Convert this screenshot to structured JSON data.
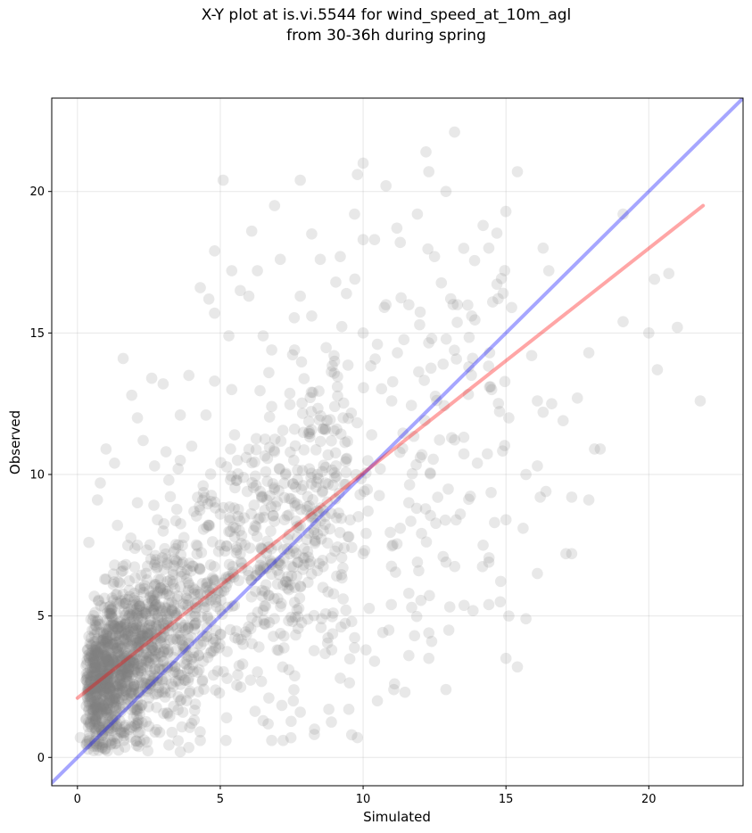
{
  "chart_data": {
    "type": "scatter",
    "title_lines": [
      "X-Y plot at is.vi.5544 for wind_speed_at_10m_agl",
      "from 30-36h during spring"
    ],
    "xlabel": "Simulated",
    "ylabel": "Observed",
    "xlim": [
      -0.9,
      23.3
    ],
    "ylim": [
      -1.0,
      23.3
    ],
    "xticks": [
      0,
      5,
      10,
      15,
      20
    ],
    "yticks": [
      0,
      5,
      10,
      15,
      20
    ],
    "grid": true,
    "point_color": "#808080",
    "point_opacity": 0.18,
    "series": [
      {
        "role": "1:1 line",
        "type": "line",
        "color": "#0000ff",
        "opacity": 0.35,
        "x": [
          -0.9,
          23.3
        ],
        "y": [
          -0.9,
          23.3
        ]
      },
      {
        "role": "linear fit",
        "type": "line",
        "color": "#ff0000",
        "opacity": 0.35,
        "x": [
          0.0,
          21.9
        ],
        "y": [
          2.1,
          19.5
        ]
      }
    ],
    "points": [
      [
        13.2,
        22.1
      ],
      [
        12.2,
        21.4
      ],
      [
        10.0,
        21.0
      ],
      [
        9.8,
        20.6
      ],
      [
        10.8,
        20.2
      ],
      [
        5.1,
        20.4
      ],
      [
        7.8,
        20.4
      ],
      [
        12.3,
        20.7
      ],
      [
        15.4,
        20.7
      ],
      [
        12.9,
        20.0
      ],
      [
        6.9,
        19.5
      ],
      [
        11.9,
        19.2
      ],
      [
        19.1,
        19.2
      ],
      [
        9.7,
        19.2
      ],
      [
        8.2,
        18.5
      ],
      [
        14.2,
        18.8
      ],
      [
        6.1,
        18.6
      ],
      [
        10.4,
        18.3
      ],
      [
        10.0,
        18.3
      ],
      [
        11.3,
        18.2
      ],
      [
        16.3,
        18.0
      ],
      [
        14.4,
        18.0
      ],
      [
        12.5,
        17.7
      ],
      [
        4.8,
        17.9
      ],
      [
        9.2,
        17.7
      ],
      [
        8.5,
        17.6
      ],
      [
        7.1,
        17.6
      ],
      [
        5.4,
        17.2
      ],
      [
        6.3,
        17.2
      ],
      [
        16.5,
        17.2
      ],
      [
        20.7,
        17.1
      ],
      [
        20.2,
        16.9
      ],
      [
        4.3,
        16.6
      ],
      [
        5.7,
        16.5
      ],
      [
        6.0,
        16.3
      ],
      [
        7.8,
        16.3
      ],
      [
        10.8,
        16.0
      ],
      [
        11.6,
        16.0
      ],
      [
        13.3,
        16.0
      ],
      [
        15.2,
        15.9
      ],
      [
        14.9,
        16.4
      ],
      [
        4.6,
        16.2
      ],
      [
        8.2,
        15.6
      ],
      [
        4.8,
        15.7
      ],
      [
        13.8,
        15.6
      ],
      [
        10.0,
        15.0
      ],
      [
        19.1,
        15.4
      ],
      [
        21.0,
        15.2
      ],
      [
        20.0,
        15.0
      ],
      [
        5.3,
        14.9
      ],
      [
        6.5,
        14.9
      ],
      [
        12.4,
        14.8
      ],
      [
        10.5,
        14.6
      ],
      [
        7.6,
        14.4
      ],
      [
        6.8,
        14.4
      ],
      [
        11.2,
        14.3
      ],
      [
        15.9,
        14.2
      ],
      [
        17.9,
        14.3
      ],
      [
        1.6,
        14.1
      ],
      [
        9.0,
        14.0
      ],
      [
        12.8,
        13.9
      ],
      [
        20.3,
        13.7
      ],
      [
        13.7,
        13.8
      ],
      [
        4.8,
        13.3
      ],
      [
        6.7,
        13.6
      ],
      [
        3.9,
        13.5
      ],
      [
        9.1,
        13.1
      ],
      [
        2.6,
        13.4
      ],
      [
        5.4,
        13.0
      ],
      [
        14.5,
        13.0
      ],
      [
        3.0,
        13.2
      ],
      [
        1.9,
        12.8
      ],
      [
        17.5,
        12.7
      ],
      [
        11.0,
        12.6
      ],
      [
        16.1,
        12.6
      ],
      [
        16.6,
        12.5
      ],
      [
        16.3,
        12.2
      ],
      [
        6.8,
        12.4
      ],
      [
        21.8,
        12.6
      ],
      [
        2.1,
        12.0
      ],
      [
        3.6,
        12.1
      ],
      [
        4.5,
        12.1
      ],
      [
        9.3,
        12.0
      ],
      [
        15.1,
        12.0
      ],
      [
        17.0,
        11.9
      ],
      [
        7.6,
        11.6
      ],
      [
        5.5,
        11.4
      ],
      [
        10.3,
        11.4
      ],
      [
        13.1,
        11.3
      ],
      [
        2.3,
        11.2
      ],
      [
        4.0,
        11.0
      ],
      [
        1.0,
        10.9
      ],
      [
        3.1,
        10.8
      ],
      [
        6.9,
        10.8
      ],
      [
        18.1,
        10.9
      ],
      [
        18.3,
        10.9
      ],
      [
        12.0,
        10.6
      ],
      [
        3.6,
        10.5
      ],
      [
        5.6,
        10.5
      ],
      [
        14.0,
        10.4
      ],
      [
        1.3,
        10.4
      ],
      [
        16.1,
        10.3
      ],
      [
        2.7,
        10.3
      ],
      [
        10.6,
        10.2
      ],
      [
        8.4,
        10.0
      ],
      [
        15.7,
        10.0
      ],
      [
        3.2,
        9.8
      ],
      [
        0.8,
        9.7
      ],
      [
        4.4,
        9.6
      ],
      [
        16.4,
        9.4
      ],
      [
        6.4,
        9.4
      ],
      [
        16.2,
        9.2
      ],
      [
        17.3,
        9.2
      ],
      [
        17.9,
        9.1
      ],
      [
        0.7,
        9.1
      ],
      [
        2.1,
        9.0
      ],
      [
        7.6,
        9.0
      ],
      [
        11.6,
        9.0
      ],
      [
        13.4,
        8.6
      ],
      [
        5.0,
        8.6
      ],
      [
        2.8,
        8.4
      ],
      [
        14.6,
        8.3
      ],
      [
        15.0,
        8.4
      ],
      [
        1.4,
        8.2
      ],
      [
        7.8,
        8.2
      ],
      [
        15.6,
        8.1
      ],
      [
        11.3,
        8.1
      ],
      [
        3.0,
        8.0
      ],
      [
        9.5,
        7.8
      ],
      [
        2.1,
        7.5
      ],
      [
        14.2,
        7.5
      ],
      [
        0.4,
        7.6
      ],
      [
        17.1,
        7.2
      ],
      [
        17.3,
        7.2
      ],
      [
        12.8,
        7.1
      ],
      [
        10.0,
        7.2
      ],
      [
        3.4,
        7.0
      ],
      [
        12.9,
        6.9
      ],
      [
        11.9,
        6.9
      ],
      [
        14.4,
        6.9
      ],
      [
        1.3,
        6.8
      ],
      [
        8.4,
        6.6
      ],
      [
        16.1,
        6.5
      ],
      [
        1.0,
        6.3
      ],
      [
        5.2,
        6.3
      ],
      [
        6.6,
        6.1
      ],
      [
        11.6,
        5.8
      ],
      [
        9.3,
        5.6
      ],
      [
        14.8,
        5.5
      ],
      [
        14.4,
        5.4
      ],
      [
        11.7,
        5.3
      ],
      [
        6.5,
        5.2
      ],
      [
        3.1,
        5.1
      ],
      [
        15.1,
        5.0
      ],
      [
        15.7,
        4.9
      ],
      [
        9.6,
        4.8
      ],
      [
        12.3,
        4.4
      ],
      [
        13.0,
        4.5
      ],
      [
        10.9,
        4.5
      ],
      [
        11.8,
        4.3
      ],
      [
        1.0,
        4.2
      ],
      [
        5.8,
        4.0
      ],
      [
        12.4,
        4.1
      ],
      [
        2.6,
        3.9
      ],
      [
        8.9,
        3.8
      ],
      [
        10.1,
        3.8
      ],
      [
        11.6,
        3.6
      ],
      [
        12.3,
        3.5
      ],
      [
        15.0,
        3.5
      ],
      [
        4.4,
        3.4
      ],
      [
        10.4,
        3.4
      ],
      [
        15.4,
        3.2
      ],
      [
        7.4,
        3.1
      ],
      [
        1.8,
        2.9
      ],
      [
        9.2,
        2.8
      ],
      [
        11.1,
        2.6
      ],
      [
        12.9,
        2.4
      ],
      [
        6.7,
        2.1
      ],
      [
        3.6,
        2.0
      ],
      [
        10.5,
        2.0
      ],
      [
        9.5,
        1.7
      ],
      [
        8.8,
        1.7
      ],
      [
        7.8,
        1.6
      ],
      [
        6.5,
        1.3
      ],
      [
        4.0,
        1.2
      ],
      [
        2.5,
        1.1
      ],
      [
        9.6,
        0.8
      ],
      [
        4.3,
        0.6
      ],
      [
        6.8,
        0.6
      ],
      [
        7.2,
        0.6
      ],
      [
        5.2,
        0.6
      ],
      [
        1.2,
        0.5
      ],
      [
        0.1,
        0.7
      ],
      [
        3.6,
        0.2
      ],
      [
        9.8,
        0.7
      ],
      [
        8.3,
        1.0
      ]
    ]
  }
}
